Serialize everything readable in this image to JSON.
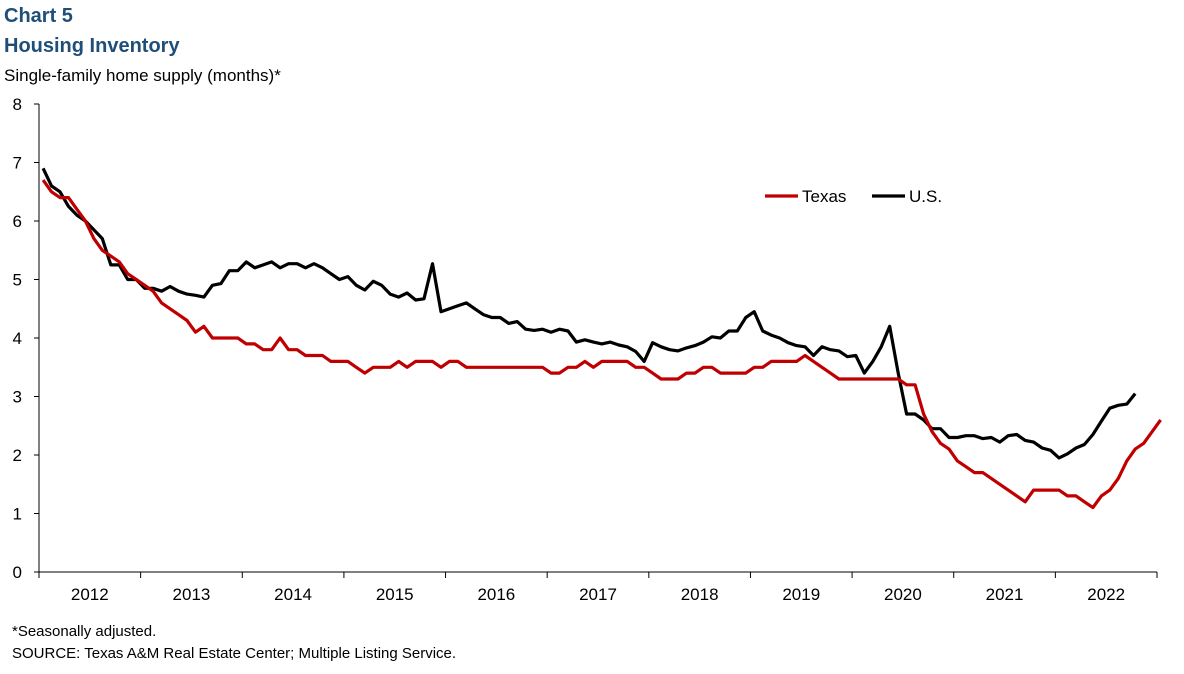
{
  "header": {
    "chart_number": "Chart 5",
    "title": "Housing Inventory",
    "unit_label": "Single-family home supply (months)*"
  },
  "footer": {
    "note": "*Seasonally adjusted.",
    "source": "SOURCE: Texas A&M Real Estate Center; Multiple Listing Service."
  },
  "chart_data": {
    "type": "line",
    "title": "Housing Inventory",
    "ylabel": "Single-family home supply (months)*",
    "xlabel": "",
    "ylim": [
      0,
      8
    ],
    "yticks": [
      0,
      1,
      2,
      3,
      4,
      5,
      6,
      7,
      8
    ],
    "x_start": 2011.5,
    "x_end": 2022.5,
    "year_labels": [
      "2012",
      "2013",
      "2014",
      "2015",
      "2016",
      "2017",
      "2018",
      "2019",
      "2020",
      "2021",
      "2022"
    ],
    "legend_position": "top-right",
    "series": [
      {
        "name": "Texas",
        "color": "#c00000",
        "start_x": 2011.54,
        "step": 0.0833,
        "values": [
          6.7,
          6.5,
          6.4,
          6.4,
          6.2,
          6.0,
          5.7,
          5.5,
          5.4,
          5.3,
          5.1,
          5.0,
          4.9,
          4.8,
          4.6,
          4.5,
          4.4,
          4.3,
          4.1,
          4.2,
          4.0,
          4.0,
          4.0,
          4.0,
          3.9,
          3.9,
          3.8,
          3.8,
          4.0,
          3.8,
          3.8,
          3.7,
          3.7,
          3.7,
          3.6,
          3.6,
          3.6,
          3.5,
          3.4,
          3.5,
          3.5,
          3.5,
          3.6,
          3.5,
          3.6,
          3.6,
          3.6,
          3.5,
          3.6,
          3.6,
          3.5,
          3.5,
          3.5,
          3.5,
          3.5,
          3.5,
          3.5,
          3.5,
          3.5,
          3.5,
          3.4,
          3.4,
          3.5,
          3.5,
          3.6,
          3.5,
          3.6,
          3.6,
          3.6,
          3.6,
          3.5,
          3.5,
          3.4,
          3.3,
          3.3,
          3.3,
          3.4,
          3.4,
          3.5,
          3.5,
          3.4,
          3.4,
          3.4,
          3.4,
          3.5,
          3.5,
          3.6,
          3.6,
          3.6,
          3.6,
          3.7,
          3.6,
          3.5,
          3.4,
          3.3,
          3.3,
          3.3,
          3.3,
          3.3,
          3.3,
          3.3,
          3.3,
          3.2,
          3.2,
          2.7,
          2.4,
          2.2,
          2.1,
          1.9,
          1.8,
          1.7,
          1.7,
          1.6,
          1.5,
          1.4,
          1.3,
          1.2,
          1.4,
          1.4,
          1.4,
          1.4,
          1.3,
          1.3,
          1.2,
          1.1,
          1.3,
          1.4,
          1.6,
          1.9,
          2.1,
          2.2,
          2.4,
          2.6
        ]
      },
      {
        "name": "U.S.",
        "color": "#000000",
        "start_x": 2011.54,
        "step": 0.0833,
        "values": [
          6.9,
          6.6,
          6.5,
          6.25,
          6.1,
          6.0,
          5.85,
          5.7,
          5.25,
          5.25,
          5.0,
          5.0,
          4.85,
          4.85,
          4.8,
          4.88,
          4.8,
          4.75,
          4.73,
          4.7,
          4.9,
          4.93,
          5.15,
          5.15,
          5.3,
          5.2,
          5.25,
          5.3,
          5.2,
          5.27,
          5.27,
          5.2,
          5.27,
          5.2,
          5.1,
          5.0,
          5.05,
          4.9,
          4.82,
          4.97,
          4.9,
          4.75,
          4.7,
          4.77,
          4.65,
          4.67,
          5.27,
          4.45,
          4.5,
          4.55,
          4.6,
          4.5,
          4.4,
          4.35,
          4.35,
          4.25,
          4.28,
          4.15,
          4.13,
          4.15,
          4.1,
          4.15,
          4.12,
          3.93,
          3.97,
          3.93,
          3.9,
          3.93,
          3.88,
          3.85,
          3.77,
          3.6,
          3.92,
          3.85,
          3.8,
          3.78,
          3.83,
          3.87,
          3.93,
          4.02,
          4.0,
          4.12,
          4.12,
          4.35,
          4.45,
          4.12,
          4.05,
          4.0,
          3.92,
          3.87,
          3.85,
          3.7,
          3.85,
          3.8,
          3.78,
          3.68,
          3.7,
          3.4,
          3.6,
          3.85,
          4.2,
          3.4,
          2.7,
          2.7,
          2.6,
          2.45,
          2.45,
          2.3,
          2.3,
          2.33,
          2.33,
          2.28,
          2.3,
          2.22,
          2.33,
          2.35,
          2.25,
          2.22,
          2.12,
          2.08,
          1.95,
          2.02,
          2.12,
          2.18,
          2.35,
          2.58,
          2.8,
          2.85,
          2.87,
          3.05
        ]
      }
    ]
  }
}
